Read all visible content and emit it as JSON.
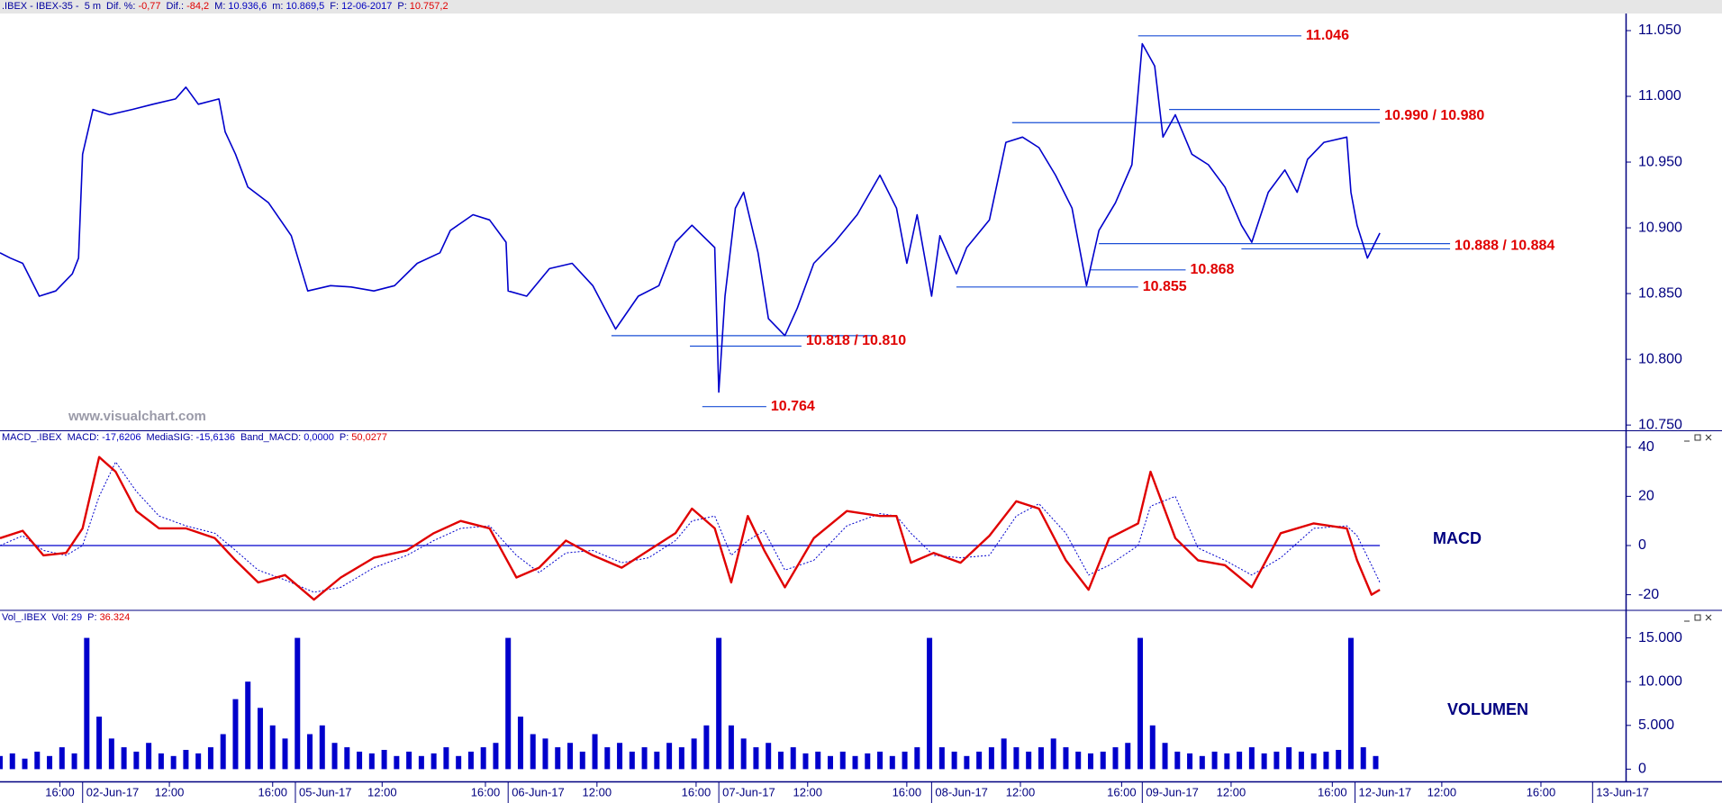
{
  "chart_data": [
    {
      "type": "line",
      "header": {
        "title": ".IBEX - IBEX-35 -  5 m",
        "items": [
          {
            "label": "Dif. %:",
            "value": "-0,77",
            "color": "#e00000"
          },
          {
            "label": "Dif.:",
            "value": "-84,2",
            "color": "#e00000"
          },
          {
            "label": "M:",
            "value": "10.936,6",
            "color": "#0000c0"
          },
          {
            "label": "m:",
            "value": "10.869,5",
            "color": "#0000c0"
          },
          {
            "label": "F:",
            "value": "12-06-2017",
            "color": "#0000c0"
          },
          {
            "label": "P:",
            "value": "10.757,2",
            "color": "#e00000"
          }
        ]
      },
      "watermark": "www.visualchart.com",
      "color": "#0000cc",
      "x": [
        0,
        5,
        11,
        19,
        27,
        35,
        38,
        40,
        45,
        53,
        64,
        74,
        85,
        90,
        96,
        106,
        109,
        114,
        120,
        130,
        141,
        149,
        160,
        170,
        181,
        191,
        202,
        213,
        218,
        229,
        237,
        245,
        246,
        255,
        266,
        277,
        287,
        298,
        309,
        319,
        327,
        335,
        346,
        348,
        351,
        356,
        360,
        367,
        372,
        380,
        386,
        394,
        404,
        415,
        426,
        434,
        439,
        444,
        451,
        455,
        463,
        468,
        479,
        487,
        495,
        503,
        511,
        519,
        526,
        532,
        540,
        548,
        553,
        559,
        563,
        569,
        577,
        585,
        593,
        601,
        606,
        614,
        622,
        628,
        633,
        641,
        652,
        654,
        657,
        662,
        668
      ],
      "values": [
        10881,
        10877,
        10873,
        10848,
        10852,
        10865,
        10877,
        10956,
        10990,
        10986,
        10990,
        10994,
        10998,
        11007,
        10994,
        10998,
        10973,
        10956,
        10931,
        10919,
        10894,
        10852,
        10856,
        10855,
        10852,
        10856,
        10873,
        10881,
        10898,
        10910,
        10906,
        10889,
        10852,
        10848,
        10869,
        10873,
        10856,
        10823,
        10848,
        10856,
        10889,
        10902,
        10885,
        10775,
        10848,
        10915,
        10927,
        10881,
        10831,
        10818,
        10839,
        10873,
        10889,
        10910,
        10940,
        10915,
        10873,
        10910,
        10848,
        10894,
        10865,
        10885,
        10906,
        10965,
        10969,
        10961,
        10940,
        10915,
        10856,
        10898,
        10919,
        10948,
        11040,
        11023,
        10969,
        10986,
        10956,
        10948,
        10931,
        10902,
        10889,
        10927,
        10944,
        10927,
        10952,
        10965,
        10969,
        10927,
        10902,
        10877,
        10896
      ],
      "xlim": [
        0,
        787
      ],
      "ylim": [
        10746,
        11063
      ],
      "yticks": [
        {
          "value": 10750,
          "label": "10.750"
        },
        {
          "value": 10800,
          "label": "10.800"
        },
        {
          "value": 10850,
          "label": "10.850"
        },
        {
          "value": 10900,
          "label": "10.900"
        },
        {
          "value": 10950,
          "label": "10.950"
        },
        {
          "value": 11000,
          "label": "11.000"
        },
        {
          "value": 11050,
          "label": "11.050"
        }
      ],
      "level_color": "#1a4fd6",
      "label_color": "#e00000",
      "levels": [
        {
          "label": "11.046",
          "lines": [
            {
              "value": 11046,
              "x": [
                551,
                630
              ]
            }
          ]
        },
        {
          "label": "10.990 / 10.980",
          "lines": [
            {
              "value": 10990,
              "x": [
                566,
                668
              ]
            },
            {
              "value": 10980,
              "x": [
                490,
                668
              ]
            }
          ]
        },
        {
          "label": "10.888 / 10.884",
          "lines": [
            {
              "value": 10888,
              "x": [
                532,
                702
              ]
            },
            {
              "value": 10884,
              "x": [
                601,
                702
              ]
            }
          ]
        },
        {
          "label": "10.868",
          "lines": [
            {
              "value": 10868,
              "x": [
                528,
                574
              ]
            }
          ]
        },
        {
          "label": "10.855",
          "lines": [
            {
              "value": 10855,
              "x": [
                463,
                551
              ]
            }
          ]
        },
        {
          "label": "10.818 / 10.810",
          "lines": [
            {
              "value": 10818,
              "x": [
                296,
                424
              ]
            },
            {
              "value": 10810,
              "x": [
                334,
                388
              ]
            }
          ]
        },
        {
          "label": "10.764",
          "lines": [
            {
              "value": 10764,
              "x": [
                340,
                371
              ]
            }
          ]
        }
      ]
    },
    {
      "type": "line",
      "header": {
        "title": "MACD_.IBEX",
        "items": [
          {
            "label": "P:",
            "value": "50,0277",
            "color": "#e00000"
          }
        ]
      },
      "label": "MACD",
      "x": [
        0,
        11,
        21,
        32,
        40,
        48,
        56,
        66,
        77,
        90,
        104,
        114,
        125,
        138,
        152,
        165,
        181,
        197,
        210,
        223,
        237,
        250,
        261,
        274,
        287,
        301,
        314,
        327,
        335,
        346,
        354,
        362,
        370,
        380,
        394,
        410,
        426,
        434,
        441,
        452,
        465,
        479,
        492,
        503,
        516,
        527,
        537,
        551,
        557,
        569,
        580,
        593,
        606,
        620,
        636,
        652,
        657,
        664,
        668
      ],
      "series": [
        {
          "name": "MACD",
          "last_label": "-17,6206",
          "color": "#e00000",
          "width": 2.4,
          "dash": false,
          "values": [
            3,
            6,
            -4,
            -3,
            7,
            36,
            30,
            14,
            7,
            7,
            3,
            -6,
            -15,
            -12,
            -22,
            -13,
            -5,
            -2,
            5,
            10,
            7,
            -13,
            -9,
            2,
            -4,
            -9,
            -2,
            5,
            15,
            7,
            -15,
            12,
            -2,
            -17,
            3,
            14,
            12,
            12,
            -7,
            -3,
            -7,
            4,
            18,
            15,
            -6,
            -18,
            3,
            9,
            30,
            3,
            -6,
            -8,
            -17,
            5,
            9,
            7,
            -6,
            -20,
            -18
          ]
        },
        {
          "name": "MediaSIG",
          "last_label": "-15,6136",
          "color": "#0000cc",
          "width": 1,
          "dash": true,
          "values": [
            0,
            4,
            -2,
            -4,
            0,
            20,
            34,
            22,
            12,
            8,
            5,
            -2,
            -10,
            -14,
            -19,
            -17,
            -9,
            -4,
            2,
            7,
            8,
            -4,
            -11,
            -3,
            -2,
            -7,
            -5,
            2,
            10,
            12,
            -4,
            2,
            6,
            -10,
            -6,
            8,
            13,
            12,
            5,
            -4,
            -5,
            -4,
            12,
            17,
            5,
            -12,
            -8,
            0,
            16,
            20,
            -1,
            -6,
            -12,
            -5,
            7,
            8,
            4,
            -8,
            -15
          ]
        },
        {
          "name": "Band_MACD",
          "last_label": "0,0000",
          "color": "#0000cc",
          "width": 1.2,
          "dash": false,
          "x": [
            0,
            668
          ],
          "values": [
            0,
            0
          ]
        }
      ],
      "xlim": [
        0,
        787
      ],
      "ylim": [
        -26,
        41
      ],
      "yticks": [
        -20,
        0,
        20,
        40
      ]
    },
    {
      "type": "bar",
      "header": {
        "title": "Vol_.IBEX",
        "items": [
          {
            "label": "Vol:",
            "value": "29",
            "color": "#0000c0"
          },
          {
            "label": "P:",
            "value": "36.324",
            "color": "#e00000"
          }
        ]
      },
      "label": "VOLUMEN",
      "color": "#0000cc",
      "x": [
        0,
        6,
        12,
        18,
        24,
        30,
        36,
        42,
        48,
        54,
        60,
        66,
        72,
        78,
        84,
        90,
        96,
        102,
        108,
        114,
        120,
        126,
        132,
        138,
        144,
        150,
        156,
        162,
        168,
        174,
        180,
        186,
        192,
        198,
        204,
        210,
        216,
        222,
        228,
        234,
        240,
        246,
        252,
        258,
        264,
        270,
        276,
        282,
        288,
        294,
        300,
        306,
        312,
        318,
        324,
        330,
        336,
        342,
        348,
        354,
        360,
        366,
        372,
        378,
        384,
        390,
        396,
        402,
        408,
        414,
        420,
        426,
        432,
        438,
        444,
        450,
        456,
        462,
        468,
        474,
        480,
        486,
        492,
        498,
        504,
        510,
        516,
        522,
        528,
        534,
        540,
        546,
        552,
        558,
        564,
        570,
        576,
        582,
        588,
        594,
        600,
        606,
        612,
        618,
        624,
        630,
        636,
        642,
        648,
        654,
        660,
        666
      ],
      "values": [
        1500,
        1800,
        1200,
        2000,
        1500,
        2500,
        1800,
        15000,
        6000,
        3500,
        2500,
        2000,
        3000,
        1800,
        1500,
        2200,
        1800,
        2500,
        4000,
        8000,
        10000,
        7000,
        5000,
        3500,
        15000,
        4000,
        5000,
        3000,
        2500,
        2000,
        1800,
        2200,
        1500,
        2000,
        1500,
        1800,
        2500,
        1500,
        2000,
        2500,
        3000,
        15000,
        6000,
        4000,
        3500,
        2500,
        3000,
        2000,
        4000,
        2500,
        3000,
        2000,
        2500,
        2000,
        3000,
        2500,
        3500,
        5000,
        15000,
        5000,
        3500,
        2500,
        3000,
        2000,
        2500,
        1800,
        2000,
        1500,
        2000,
        1500,
        1800,
        2000,
        1500,
        2000,
        2500,
        15000,
        2500,
        2000,
        1500,
        2000,
        2500,
        3500,
        2500,
        2000,
        2500,
        3500,
        2500,
        2000,
        1800,
        2000,
        2500,
        3000,
        15000,
        5000,
        3000,
        2000,
        1800,
        1500,
        2000,
        1800,
        2000,
        2500,
        1800,
        2000,
        2500,
        2000,
        1800,
        2000,
        2200,
        15000,
        2500,
        1500
      ],
      "xlim": [
        0,
        787
      ],
      "ylim": [
        -1400,
        16500
      ],
      "yticks": [
        0,
        {
          "value": 5000,
          "label": "5.000"
        },
        {
          "value": 10000,
          "label": "10.000"
        },
        {
          "value": 15000,
          "label": "15.000"
        }
      ],
      "xticks": [
        {
          "value": 29,
          "label": "16:00"
        },
        {
          "value": 40,
          "label": "02-Jun-17"
        },
        {
          "value": 82,
          "label": "12:00"
        },
        {
          "value": 132,
          "label": "16:00"
        },
        {
          "value": 143,
          "label": "05-Jun-17"
        },
        {
          "value": 185,
          "label": "12:00"
        },
        {
          "value": 235,
          "label": "16:00"
        },
        {
          "value": 246,
          "label": "06-Jun-17"
        },
        {
          "value": 289,
          "label": "12:00"
        },
        {
          "value": 337,
          "label": "16:00"
        },
        {
          "value": 348,
          "label": "07-Jun-17"
        },
        {
          "value": 391,
          "label": "12:00"
        },
        {
          "value": 439,
          "label": "16:00"
        },
        {
          "value": 451,
          "label": "08-Jun-17"
        },
        {
          "value": 494,
          "label": "12:00"
        },
        {
          "value": 543,
          "label": "16:00"
        },
        {
          "value": 553,
          "label": "09-Jun-17"
        },
        {
          "value": 596,
          "label": "12:00"
        },
        {
          "value": 645,
          "label": "16:00"
        },
        {
          "value": 656,
          "label": "12-Jun-17"
        },
        {
          "value": 698,
          "label": "12:00"
        },
        {
          "value": 746,
          "label": "16:00"
        },
        {
          "value": 771,
          "label": "13-Jun-17"
        }
      ]
    }
  ]
}
